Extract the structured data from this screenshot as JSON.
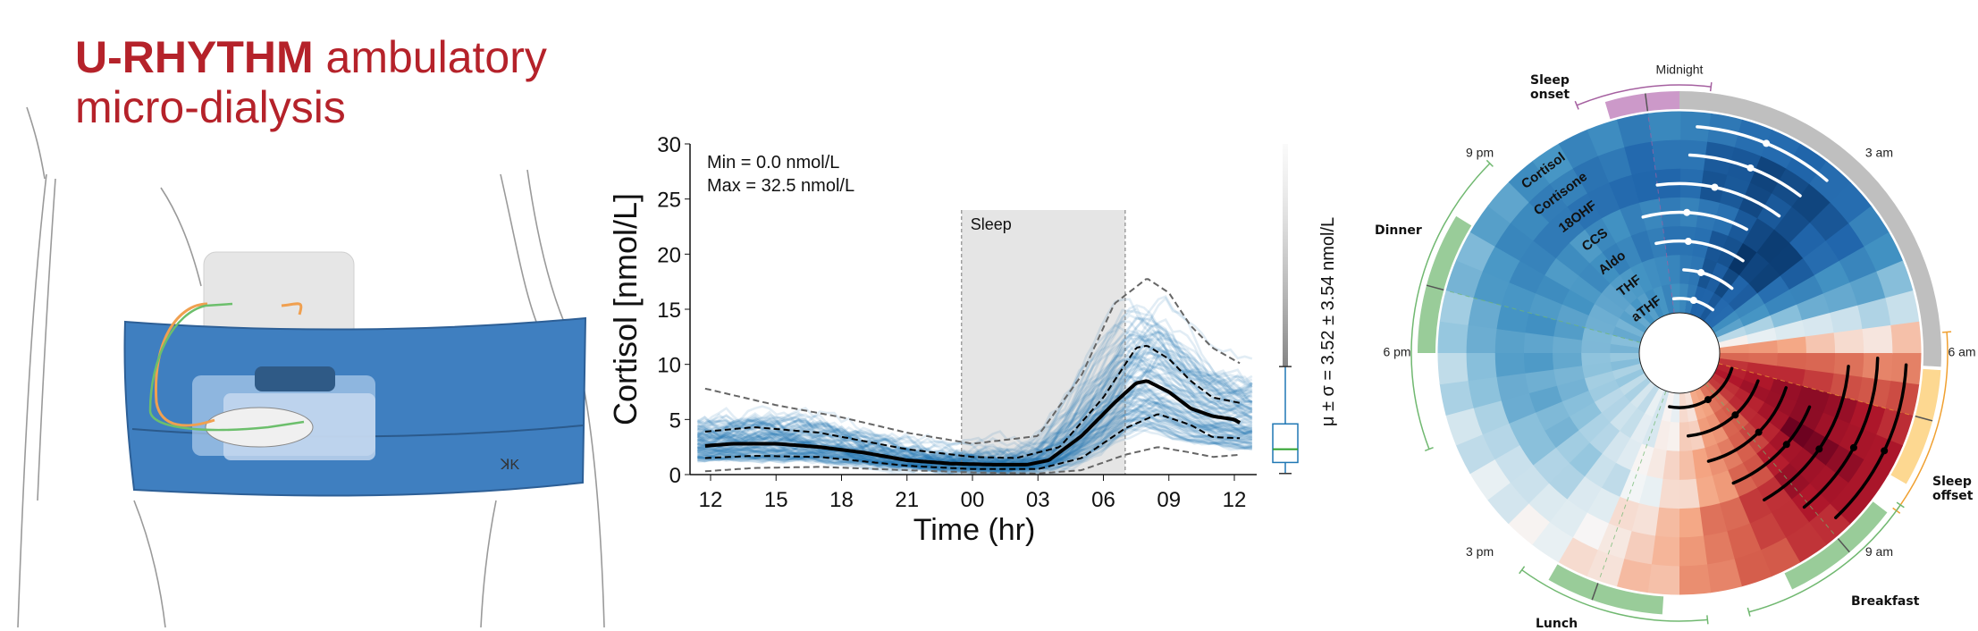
{
  "title": {
    "bold": "U-RHYTHM",
    "rest": " ambulatory",
    "line2": "micro-dialysis",
    "color": "#b5222a"
  },
  "illustration": {
    "belt_color": "#3f7fc0",
    "device_color": "#e6e6e6"
  },
  "chart_data": [
    {
      "type": "line",
      "xlabel": "Time (hr)",
      "ylabel": "Cortisol [nmol/L]",
      "ylim": [
        0,
        30
      ],
      "yticks": [
        "0",
        "5",
        "10",
        "15",
        "20",
        "25",
        "30"
      ],
      "xticks": [
        "12",
        "15",
        "18",
        "21",
        "00",
        "03",
        "06",
        "09",
        "12"
      ],
      "annotations": {
        "min": "Min = 0.0 nmol/L",
        "max": "Max = 32.5 nmol/L",
        "sleep": "Sleep",
        "stats": "μ ± σ = 3.52 ± 3.54 nmol/L"
      },
      "sleep_window": [
        "23:30",
        "07:00"
      ],
      "sleep_ymax": 24,
      "colors": {
        "traces": "#1f77b4",
        "mean": "#000000",
        "iqr": "#000000",
        "outer": "#666666",
        "box": "#1f77b4",
        "median": "#2ca02c",
        "sleep_shade": "#e5e5e5"
      },
      "series": [
        {
          "role": "mean",
          "points": [
            [
              "11:45",
              2.6
            ],
            [
              "13:00",
              2.8
            ],
            [
              "15:00",
              2.8
            ],
            [
              "17:00",
              2.5
            ],
            [
              "19:00",
              2.0
            ],
            [
              "21:00",
              1.3
            ],
            [
              "23:00",
              1.0
            ],
            [
              "01:00",
              0.9
            ],
            [
              "02:30",
              0.9
            ],
            [
              "03:30",
              1.3
            ],
            [
              "05:00",
              3.5
            ],
            [
              "06:30",
              6.5
            ],
            [
              "07:30",
              8.3
            ],
            [
              "08:00",
              8.5
            ],
            [
              "09:00",
              7.5
            ],
            [
              "10:00",
              6.0
            ],
            [
              "11:00",
              5.3
            ],
            [
              "12:00",
              5.0
            ],
            [
              "12:20",
              4.6
            ]
          ]
        },
        {
          "role": "q75",
          "points": [
            [
              "11:45",
              3.9
            ],
            [
              "14:00",
              4.3
            ],
            [
              "17:00",
              3.8
            ],
            [
              "21:00",
              2.3
            ],
            [
              "00:00",
              1.6
            ],
            [
              "02:00",
              1.5
            ],
            [
              "04:00",
              2.5
            ],
            [
              "06:00",
              7.0
            ],
            [
              "07:30",
              11.5
            ],
            [
              "08:00",
              11.7
            ],
            [
              "09:00",
              10.5
            ],
            [
              "10:00",
              8.5
            ],
            [
              "11:00",
              7.0
            ],
            [
              "12:15",
              6.5
            ]
          ]
        },
        {
          "role": "q25",
          "points": [
            [
              "11:45",
              1.5
            ],
            [
              "14:00",
              1.7
            ],
            [
              "17:00",
              1.6
            ],
            [
              "21:00",
              0.8
            ],
            [
              "00:00",
              0.5
            ],
            [
              "03:00",
              0.5
            ],
            [
              "05:00",
              1.5
            ],
            [
              "07:00",
              4.2
            ],
            [
              "08:30",
              5.5
            ],
            [
              "10:00",
              4.5
            ],
            [
              "11:00",
              3.4
            ],
            [
              "12:15",
              3.3
            ]
          ]
        },
        {
          "role": "q95",
          "points": [
            [
              "11:45",
              7.8
            ],
            [
              "15:00",
              6.3
            ],
            [
              "18:00",
              5.2
            ],
            [
              "21:00",
              3.8
            ],
            [
              "00:00",
              2.8
            ],
            [
              "03:00",
              3.5
            ],
            [
              "05:00",
              9.0
            ],
            [
              "06:30",
              15.5
            ],
            [
              "08:00",
              17.8
            ],
            [
              "09:00",
              16.5
            ],
            [
              "10:00",
              13.5
            ],
            [
              "11:00",
              11.5
            ],
            [
              "12:15",
              10.1
            ]
          ]
        },
        {
          "role": "q05",
          "points": [
            [
              "11:45",
              0.3
            ],
            [
              "14:00",
              0.6
            ],
            [
              "17:00",
              0.7
            ],
            [
              "21:00",
              0.4
            ],
            [
              "00:00",
              0.2
            ],
            [
              "03:00",
              0.1
            ],
            [
              "05:00",
              0.4
            ],
            [
              "07:00",
              1.8
            ],
            [
              "08:30",
              2.5
            ],
            [
              "10:00",
              2.0
            ],
            [
              "11:00",
              1.6
            ],
            [
              "12:15",
              1.8
            ]
          ]
        }
      ],
      "boxplot": {
        "whisker_low": 0.1,
        "q1": 1.1,
        "median": 2.3,
        "q3": 4.6,
        "whisker_high": 9.8,
        "outlier_max": 30
      }
    },
    {
      "type": "heatmap",
      "subtype": "polar-24h",
      "colormap": "RdBu_r",
      "clock_labels": [
        [
          "Midnight",
          0
        ],
        [
          "3 am",
          3
        ],
        [
          "6 am",
          6
        ],
        [
          "9 am",
          9
        ],
        [
          "3 pm",
          15
        ],
        [
          "6 pm",
          18
        ],
        [
          "9 pm",
          21
        ]
      ],
      "rings": [
        {
          "name": "Cortisol",
          "values": [
            -0.6,
            -0.7,
            -0.75,
            -0.7,
            -0.5,
            -0.1,
            0.4,
            0.7,
            0.8,
            0.7,
            0.55,
            0.4,
            0.2,
            0.1,
            0.0,
            -0.05,
            -0.1,
            -0.15,
            -0.2,
            -0.3,
            -0.4,
            -0.5,
            -0.55,
            -0.6
          ],
          "trough": [
            0.3,
            1.5,
            2.7
          ],
          "peak": [
            6.2,
            7.7,
            9.1
          ]
        },
        {
          "name": "Cortisone",
          "values": [
            -0.7,
            -0.85,
            -0.9,
            -0.85,
            -0.6,
            -0.2,
            0.35,
            0.75,
            0.85,
            0.75,
            0.6,
            0.4,
            0.2,
            0.05,
            -0.05,
            -0.1,
            -0.15,
            -0.25,
            -0.35,
            -0.45,
            -0.55,
            -0.6,
            -0.65,
            -0.7
          ],
          "trough": [
            0.2,
            1.4,
            2.5
          ],
          "peak": [
            6.1,
            7.9,
            9.4
          ]
        },
        {
          "name": "18OHF",
          "values": [
            -0.75,
            -0.85,
            -0.85,
            -0.8,
            -0.55,
            -0.15,
            0.4,
            0.8,
            0.9,
            0.8,
            0.6,
            0.4,
            0.15,
            0.05,
            -0.1,
            -0.2,
            -0.3,
            -0.4,
            -0.45,
            -0.5,
            -0.6,
            -0.65,
            -0.7,
            -0.75
          ],
          "trough": [
            -0.5,
            0.8,
            2.4
          ],
          "peak": [
            6.3,
            8.3,
            10.0
          ]
        },
        {
          "name": "CCS",
          "values": [
            -0.6,
            -0.7,
            -0.9,
            -0.95,
            -0.6,
            -0.1,
            0.45,
            0.85,
            0.95,
            0.7,
            0.45,
            0.2,
            0.05,
            -0.05,
            -0.15,
            -0.25,
            -0.35,
            -0.4,
            -0.45,
            -0.5,
            -0.5,
            -0.5,
            -0.55,
            -0.6
          ],
          "trough": [
            -1.0,
            0.2,
            1.9
          ],
          "peak": [
            7.5,
            8.7,
            10.5
          ]
        },
        {
          "name": "Aldo",
          "values": [
            -0.65,
            -0.8,
            -0.95,
            -0.9,
            -0.55,
            -0.05,
            0.5,
            0.85,
            0.8,
            0.6,
            0.4,
            0.25,
            0.1,
            0.0,
            -0.1,
            -0.2,
            -0.3,
            -0.35,
            -0.4,
            -0.45,
            -0.5,
            -0.55,
            -0.6,
            -0.65
          ],
          "trough": [
            -0.8,
            0.3,
            2.3
          ],
          "peak": [
            7.2,
            9.0,
            11.0
          ]
        },
        {
          "name": "THF",
          "values": [
            -0.6,
            -0.8,
            -0.85,
            -0.75,
            -0.45,
            0.0,
            0.5,
            0.8,
            0.75,
            0.55,
            0.35,
            0.15,
            0.05,
            -0.05,
            -0.1,
            -0.15,
            -0.2,
            -0.25,
            -0.3,
            -0.35,
            -0.4,
            -0.45,
            -0.5,
            -0.55
          ],
          "trough": [
            0.2,
            1.0,
            2.6
          ],
          "peak": [
            7.3,
            9.2,
            11.6
          ]
        },
        {
          "name": "aTHF",
          "values": [
            -0.55,
            -0.75,
            -0.8,
            -0.7,
            -0.4,
            0.05,
            0.5,
            0.75,
            0.7,
            0.5,
            0.3,
            0.1,
            0.0,
            -0.05,
            -0.1,
            -0.15,
            -0.2,
            -0.25,
            -0.3,
            -0.35,
            -0.4,
            -0.45,
            -0.5,
            -0.55
          ],
          "trough": [
            -0.4,
            1.0,
            2.5
          ],
          "peak": [
            7.1,
            9.9,
            12.7
          ]
        }
      ],
      "sleep_arc": {
        "span": [
          0,
          6.2
        ],
        "color": "#bfbfbf"
      },
      "events": [
        {
          "label": "Sleep onset",
          "span": [
            22.9,
            24.0
          ],
          "mean": 23.5,
          "range": [
            22.5,
            24.45
          ],
          "color": "#cc99c9",
          "whisker": "#a560a0"
        },
        {
          "label": "Sleep offset",
          "span": [
            6.25,
            8.0
          ],
          "mean": 7.0,
          "range": [
            5.7,
            8.4
          ],
          "color": "#fdd891",
          "whisker": "#f0a030"
        },
        {
          "label": "Breakfast",
          "span": [
            8.5,
            10.3
          ],
          "mean": 9.3,
          "range": [
            8.3,
            11.0
          ],
          "color": "#99cc99",
          "whisker": "#70b870"
        },
        {
          "label": "Lunch",
          "span": [
            12.25,
            14.0
          ],
          "mean": 13.3,
          "range": [
            11.6,
            14.4
          ],
          "color": "#99cc99",
          "whisker": "#70b870"
        },
        {
          "label": "Dinner",
          "span": [
            18.0,
            20.1
          ],
          "mean": 19.0,
          "range": [
            16.6,
            21.0
          ],
          "color": "#99cc99",
          "whisker": "#70b870"
        }
      ]
    }
  ]
}
